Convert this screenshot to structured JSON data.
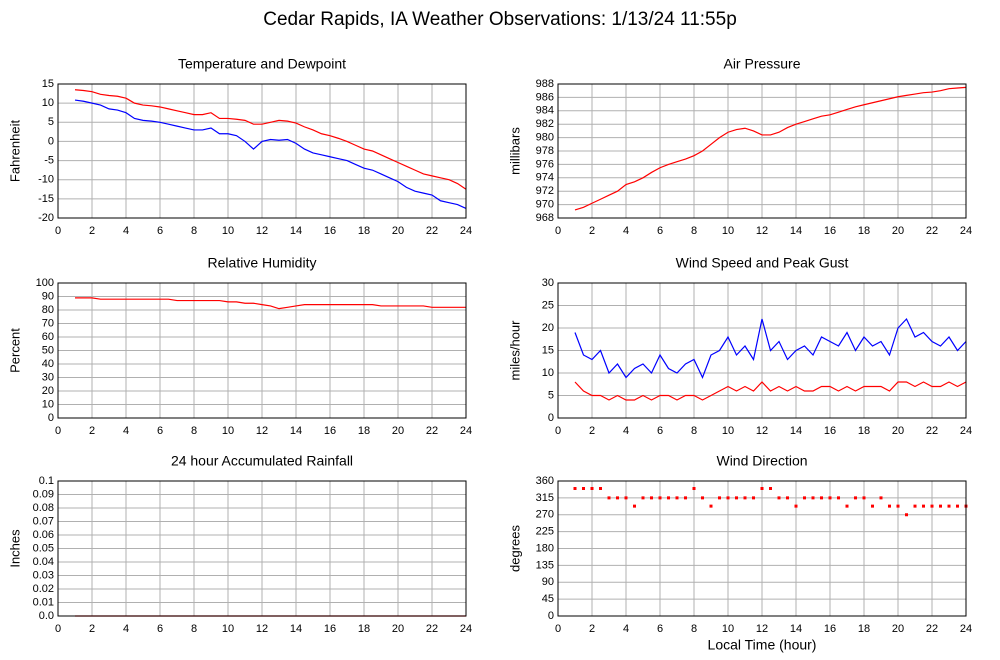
{
  "title": "Cedar Rapids, IA Weather Observations: 1/13/24 11:55p",
  "xlabel": "Local Time (hour)",
  "chart_data": [
    {
      "type": "line",
      "title": "Temperature and Dewpoint",
      "ylabel": "Fahrenheit",
      "xlim": [
        0,
        24
      ],
      "xticks": [
        0,
        2,
        4,
        6,
        8,
        10,
        12,
        14,
        16,
        18,
        20,
        22,
        24
      ],
      "ylim": [
        -20,
        15
      ],
      "yticks": [
        15,
        10,
        5,
        0,
        -5,
        -10,
        -15,
        -20
      ],
      "grid": true,
      "x": [
        1,
        1.5,
        2,
        2.5,
        3,
        3.5,
        4,
        4.5,
        5,
        5.5,
        6,
        6.5,
        7,
        7.5,
        8,
        8.5,
        9,
        9.5,
        10,
        10.5,
        11,
        11.5,
        12,
        12.5,
        13,
        13.5,
        14,
        14.5,
        15,
        15.5,
        16,
        16.5,
        17,
        17.5,
        18,
        18.5,
        19,
        19.5,
        20,
        20.5,
        21,
        21.5,
        22,
        22.5,
        23,
        23.5,
        24
      ],
      "series": [
        {
          "color": "#ff0000",
          "values": [
            13.5,
            13.3,
            13,
            12.3,
            12,
            11.8,
            11.3,
            10,
            9.5,
            9.3,
            9,
            8.5,
            8,
            7.5,
            7,
            7,
            7.5,
            6,
            6,
            5.8,
            5.5,
            4.5,
            4.5,
            5,
            5.5,
            5.3,
            4.8,
            3.8,
            3,
            2,
            1.5,
            0.8,
            0,
            -1,
            -2,
            -2.5,
            -3.5,
            -4.5,
            -5.5,
            -6.5,
            -7.5,
            -8.5,
            -9,
            -9.5,
            -10,
            -11,
            -12.5
          ]
        },
        {
          "color": "#0000ff",
          "values": [
            10.8,
            10.5,
            10,
            9.5,
            8.5,
            8.2,
            7.5,
            6,
            5.5,
            5.3,
            5,
            4.5,
            4,
            3.5,
            3,
            3,
            3.5,
            2,
            2,
            1.5,
            0,
            -2,
            0,
            0.5,
            0.3,
            0.5,
            -0.5,
            -2,
            -3,
            -3.5,
            -4,
            -4.5,
            -5,
            -6,
            -7,
            -7.5,
            -8.5,
            -9.5,
            -10.5,
            -12,
            -13,
            -13.5,
            -14,
            -15.5,
            -16,
            -16.5,
            -17.5
          ]
        }
      ]
    },
    {
      "type": "line",
      "title": "Air Pressure",
      "ylabel": "millibars",
      "xlim": [
        0,
        24
      ],
      "xticks": [
        0,
        2,
        4,
        6,
        8,
        10,
        12,
        14,
        16,
        18,
        20,
        22,
        24
      ],
      "ylim": [
        968,
        988
      ],
      "yticks": [
        988,
        986,
        984,
        982,
        980,
        978,
        976,
        974,
        972,
        970,
        968
      ],
      "grid": true,
      "x": [
        1,
        1.5,
        2,
        2.5,
        3,
        3.5,
        4,
        4.5,
        5,
        5.5,
        6,
        6.5,
        7,
        7.5,
        8,
        8.5,
        9,
        9.5,
        10,
        10.5,
        11,
        11.5,
        12,
        12.5,
        13,
        13.5,
        14,
        14.5,
        15,
        15.5,
        16,
        16.5,
        17,
        17.5,
        18,
        18.5,
        19,
        19.5,
        20,
        20.5,
        21,
        21.5,
        22,
        22.5,
        23,
        23.5,
        24
      ],
      "series": [
        {
          "color": "#ff0000",
          "values": [
            969.2,
            969.6,
            970.2,
            970.8,
            971.4,
            972,
            973,
            973.4,
            974,
            974.8,
            975.5,
            976,
            976.4,
            976.8,
            977.3,
            978,
            979,
            980,
            980.8,
            981.2,
            981.4,
            981,
            980.4,
            980.4,
            980.8,
            981.5,
            982,
            982.4,
            982.8,
            983.2,
            983.4,
            983.8,
            984.2,
            984.6,
            984.9,
            985.2,
            985.5,
            985.8,
            986.1,
            986.3,
            986.5,
            986.7,
            986.8,
            987,
            987.3,
            987.4,
            987.5
          ]
        }
      ]
    },
    {
      "type": "line",
      "title": "Relative Humidity",
      "ylabel": "Percent",
      "xlim": [
        0,
        24
      ],
      "xticks": [
        0,
        2,
        4,
        6,
        8,
        10,
        12,
        14,
        16,
        18,
        20,
        22,
        24
      ],
      "ylim": [
        0,
        100
      ],
      "yticks": [
        100,
        90,
        80,
        70,
        60,
        50,
        40,
        30,
        20,
        10,
        0
      ],
      "grid": true,
      "x": [
        1,
        1.5,
        2,
        2.5,
        3,
        3.5,
        4,
        4.5,
        5,
        5.5,
        6,
        6.5,
        7,
        7.5,
        8,
        8.5,
        9,
        9.5,
        10,
        10.5,
        11,
        11.5,
        12,
        12.5,
        13,
        13.5,
        14,
        14.5,
        15,
        15.5,
        16,
        16.5,
        17,
        17.5,
        18,
        18.5,
        19,
        19.5,
        20,
        20.5,
        21,
        21.5,
        22,
        22.5,
        23,
        23.5,
        24
      ],
      "series": [
        {
          "color": "#ff0000",
          "values": [
            89,
            89,
            89,
            88,
            88,
            88,
            88,
            88,
            88,
            88,
            88,
            88,
            87,
            87,
            87,
            87,
            87,
            87,
            86,
            86,
            85,
            85,
            84,
            83,
            81,
            82,
            83,
            84,
            84,
            84,
            84,
            84,
            84,
            84,
            84,
            84,
            83,
            83,
            83,
            83,
            83,
            83,
            82,
            82,
            82,
            82,
            82
          ]
        }
      ]
    },
    {
      "type": "line",
      "title": "Wind Speed and Peak Gust",
      "ylabel": "miles/hour",
      "xlim": [
        0,
        24
      ],
      "xticks": [
        0,
        2,
        4,
        6,
        8,
        10,
        12,
        14,
        16,
        18,
        20,
        22,
        24
      ],
      "ylim": [
        0,
        30
      ],
      "yticks": [
        30,
        25,
        20,
        15,
        10,
        5,
        0
      ],
      "grid": true,
      "x": [
        1,
        1.5,
        2,
        2.5,
        3,
        3.5,
        4,
        4.5,
        5,
        5.5,
        6,
        6.5,
        7,
        7.5,
        8,
        8.5,
        9,
        9.5,
        10,
        10.5,
        11,
        11.5,
        12,
        12.5,
        13,
        13.5,
        14,
        14.5,
        15,
        15.5,
        16,
        16.5,
        17,
        17.5,
        18,
        18.5,
        19,
        19.5,
        20,
        20.5,
        21,
        21.5,
        22,
        22.5,
        23,
        23.5,
        24
      ],
      "series": [
        {
          "color": "#0000ff",
          "values": [
            19,
            14,
            13,
            15,
            10,
            12,
            9,
            11,
            12,
            10,
            14,
            11,
            10,
            12,
            13,
            9,
            14,
            15,
            18,
            14,
            16,
            13,
            22,
            15,
            17,
            13,
            15,
            16,
            14,
            18,
            17,
            16,
            19,
            15,
            18,
            16,
            17,
            14,
            20,
            22,
            18,
            19,
            17,
            16,
            18,
            15,
            17
          ]
        },
        {
          "color": "#ff0000",
          "values": [
            8,
            6,
            5,
            5,
            4,
            5,
            4,
            4,
            5,
            4,
            5,
            5,
            4,
            5,
            5,
            4,
            5,
            6,
            7,
            6,
            7,
            6,
            8,
            6,
            7,
            6,
            7,
            6,
            6,
            7,
            7,
            6,
            7,
            6,
            7,
            7,
            7,
            6,
            8,
            8,
            7,
            8,
            7,
            7,
            8,
            7,
            8
          ]
        }
      ]
    },
    {
      "type": "line",
      "title": "24 hour Accumulated Rainfall",
      "ylabel": "Inches",
      "xlim": [
        0,
        24
      ],
      "xticks": [
        0,
        2,
        4,
        6,
        8,
        10,
        12,
        14,
        16,
        18,
        20,
        22,
        24
      ],
      "ylim": [
        0,
        0.1
      ],
      "yticks": [
        0.1,
        0.09,
        0.08,
        0.07,
        0.06,
        0.05,
        0.04,
        0.03,
        0.02,
        0.01,
        {
          "value": 0,
          "label": "0.0"
        }
      ],
      "grid": true,
      "x": [
        1,
        24
      ],
      "series": [
        {
          "color": "#ff0000",
          "values": [
            0,
            0
          ]
        }
      ]
    },
    {
      "type": "scatter",
      "title": "Wind Direction",
      "ylabel": "degrees",
      "xlim": [
        0,
        24
      ],
      "xticks": [
        0,
        2,
        4,
        6,
        8,
        10,
        12,
        14,
        16,
        18,
        20,
        22,
        24
      ],
      "ylim": [
        0,
        360
      ],
      "yticks": [
        360,
        315,
        270,
        225,
        180,
        135,
        90,
        45,
        0
      ],
      "grid": true,
      "x": [
        1,
        1.5,
        2,
        2.5,
        3,
        3.5,
        4,
        4.5,
        5,
        5.5,
        6,
        6.5,
        7,
        7.5,
        8,
        8.5,
        9,
        9.5,
        10,
        10.5,
        11,
        11.5,
        12,
        12.5,
        13,
        13.5,
        14,
        14.5,
        15,
        15.5,
        16,
        16.5,
        17,
        17.5,
        18,
        18.5,
        19,
        19.5,
        20,
        20.5,
        21,
        21.5,
        22,
        22.5,
        23,
        23.5,
        24
      ],
      "series": [
        {
          "color": "#ff0000",
          "values": [
            340,
            340,
            340,
            340,
            315,
            315,
            315,
            293,
            315,
            315,
            315,
            315,
            315,
            315,
            340,
            315,
            293,
            315,
            315,
            315,
            315,
            315,
            340,
            340,
            315,
            315,
            293,
            315,
            315,
            315,
            315,
            315,
            293,
            315,
            315,
            293,
            315,
            293,
            293,
            270,
            293,
            293,
            293,
            293,
            293,
            293,
            293
          ]
        }
      ]
    }
  ]
}
